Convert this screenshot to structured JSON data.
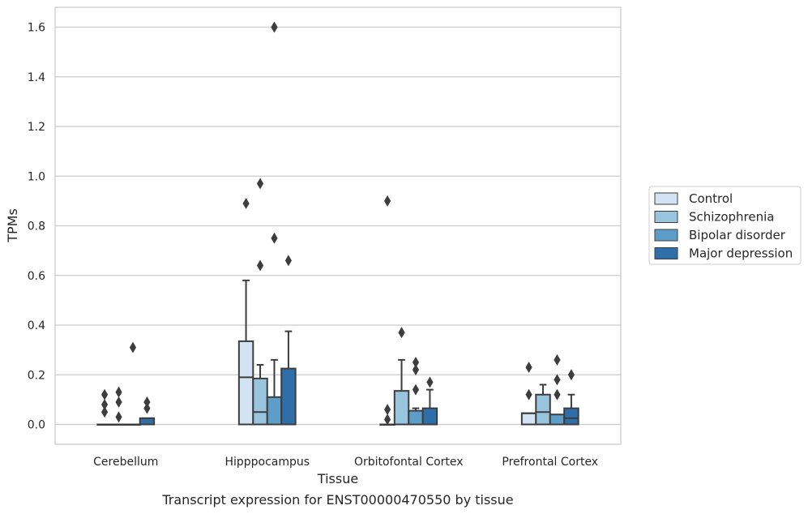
{
  "chart_data": {
    "type": "box",
    "xlabel": "Tissue",
    "ylabel": "TPMs",
    "caption": "Transcript expression for ENST00000470550 by tissue",
    "ylim": [
      -0.08,
      1.68
    ],
    "yticks": [
      "0.0",
      "0.2",
      "0.4",
      "0.6",
      "0.8",
      "1.0",
      "1.2",
      "1.4",
      "1.6"
    ],
    "grid": true,
    "legend_position": "right",
    "categories": [
      "Cerebellum",
      "Hipppocampus",
      "Orbitofontal Cortex",
      "Prefrontal Cortex"
    ],
    "series": [
      {
        "name": "Control",
        "color": "#d3e3f3",
        "boxes": [
          {
            "min": 0.0,
            "q1": 0.0,
            "median": 0.0,
            "q3": 0.0,
            "max": 0.0,
            "outliers": [
              0.05,
              0.08,
              0.12
            ]
          },
          {
            "min": 0.0,
            "q1": 0.0,
            "median": 0.19,
            "q3": 0.335,
            "max": 0.58,
            "outliers": [
              0.89
            ]
          },
          {
            "min": 0.0,
            "q1": 0.0,
            "median": 0.0,
            "q3": 0.0,
            "max": 0.0,
            "outliers": [
              0.02,
              0.06,
              0.9
            ]
          },
          {
            "min": 0.0,
            "q1": 0.0,
            "median": 0.045,
            "q3": 0.045,
            "max": 0.045,
            "outliers": [
              0.12,
              0.23
            ]
          }
        ]
      },
      {
        "name": "Schizophrenia",
        "color": "#99c4de",
        "boxes": [
          {
            "min": 0.0,
            "q1": 0.0,
            "median": 0.0,
            "q3": 0.0,
            "max": 0.0,
            "outliers": [
              0.03,
              0.09,
              0.13
            ]
          },
          {
            "min": 0.0,
            "q1": 0.0,
            "median": 0.05,
            "q3": 0.185,
            "max": 0.24,
            "outliers": [
              0.64,
              0.97
            ]
          },
          {
            "min": 0.0,
            "q1": 0.0,
            "median": 0.0,
            "q3": 0.135,
            "max": 0.26,
            "outliers": [
              0.37
            ]
          },
          {
            "min": 0.0,
            "q1": 0.0,
            "median": 0.05,
            "q3": 0.12,
            "max": 0.16,
            "outliers": []
          }
        ]
      },
      {
        "name": "Bipolar disorder",
        "color": "#5d9ec9",
        "boxes": [
          {
            "min": 0.0,
            "q1": 0.0,
            "median": 0.0,
            "q3": 0.0,
            "max": 0.0,
            "outliers": [
              0.31
            ]
          },
          {
            "min": 0.0,
            "q1": 0.0,
            "median": 0.0,
            "q3": 0.11,
            "max": 0.26,
            "outliers": [
              0.75,
              1.6
            ]
          },
          {
            "min": 0.0,
            "q1": 0.0,
            "median": 0.0,
            "q3": 0.055,
            "max": 0.065,
            "outliers": [
              0.14,
              0.22,
              0.25
            ]
          },
          {
            "min": 0.0,
            "q1": 0.0,
            "median": 0.0,
            "q3": 0.04,
            "max": 0.04,
            "outliers": [
              0.12,
              0.18,
              0.26
            ]
          }
        ]
      },
      {
        "name": "Major depression",
        "color": "#2e6fa9",
        "boxes": [
          {
            "min": 0.0,
            "q1": 0.0,
            "median": 0.025,
            "q3": 0.025,
            "max": 0.025,
            "outliers": [
              0.065,
              0.09
            ]
          },
          {
            "min": 0.0,
            "q1": 0.0,
            "median": 0.0,
            "q3": 0.225,
            "max": 0.375,
            "outliers": [
              0.66
            ]
          },
          {
            "min": 0.0,
            "q1": 0.0,
            "median": 0.0,
            "q3": 0.065,
            "max": 0.14,
            "outliers": [
              0.17
            ]
          },
          {
            "min": 0.0,
            "q1": 0.0,
            "median": 0.025,
            "q3": 0.065,
            "max": 0.12,
            "outliers": [
              0.2
            ]
          }
        ]
      }
    ]
  }
}
